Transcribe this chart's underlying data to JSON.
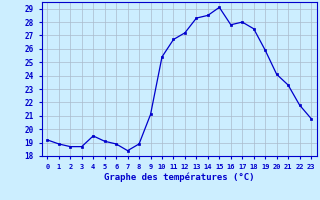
{
  "hours": [
    0,
    1,
    2,
    3,
    4,
    5,
    6,
    7,
    8,
    9,
    10,
    11,
    12,
    13,
    14,
    15,
    16,
    17,
    18,
    19,
    20,
    21,
    22,
    23
  ],
  "temps": [
    19.2,
    18.9,
    18.7,
    18.7,
    19.5,
    19.1,
    18.9,
    18.4,
    18.9,
    21.1,
    25.4,
    26.7,
    27.2,
    28.3,
    28.5,
    29.1,
    27.8,
    28.0,
    27.5,
    25.9,
    24.1,
    23.3,
    21.8,
    20.8
  ],
  "line_color": "#0000cc",
  "marker": "s",
  "marker_size": 2.0,
  "bg_color": "#cceeff",
  "grid_color": "#aabbcc",
  "axis_color": "#0000cc",
  "ylim": [
    18,
    29.5
  ],
  "yticks": [
    18,
    19,
    20,
    21,
    22,
    23,
    24,
    25,
    26,
    27,
    28,
    29
  ],
  "xlabel": "Graphe des températures (°C)",
  "xlabel_color": "#0000cc",
  "tick_label_color": "#0000cc"
}
